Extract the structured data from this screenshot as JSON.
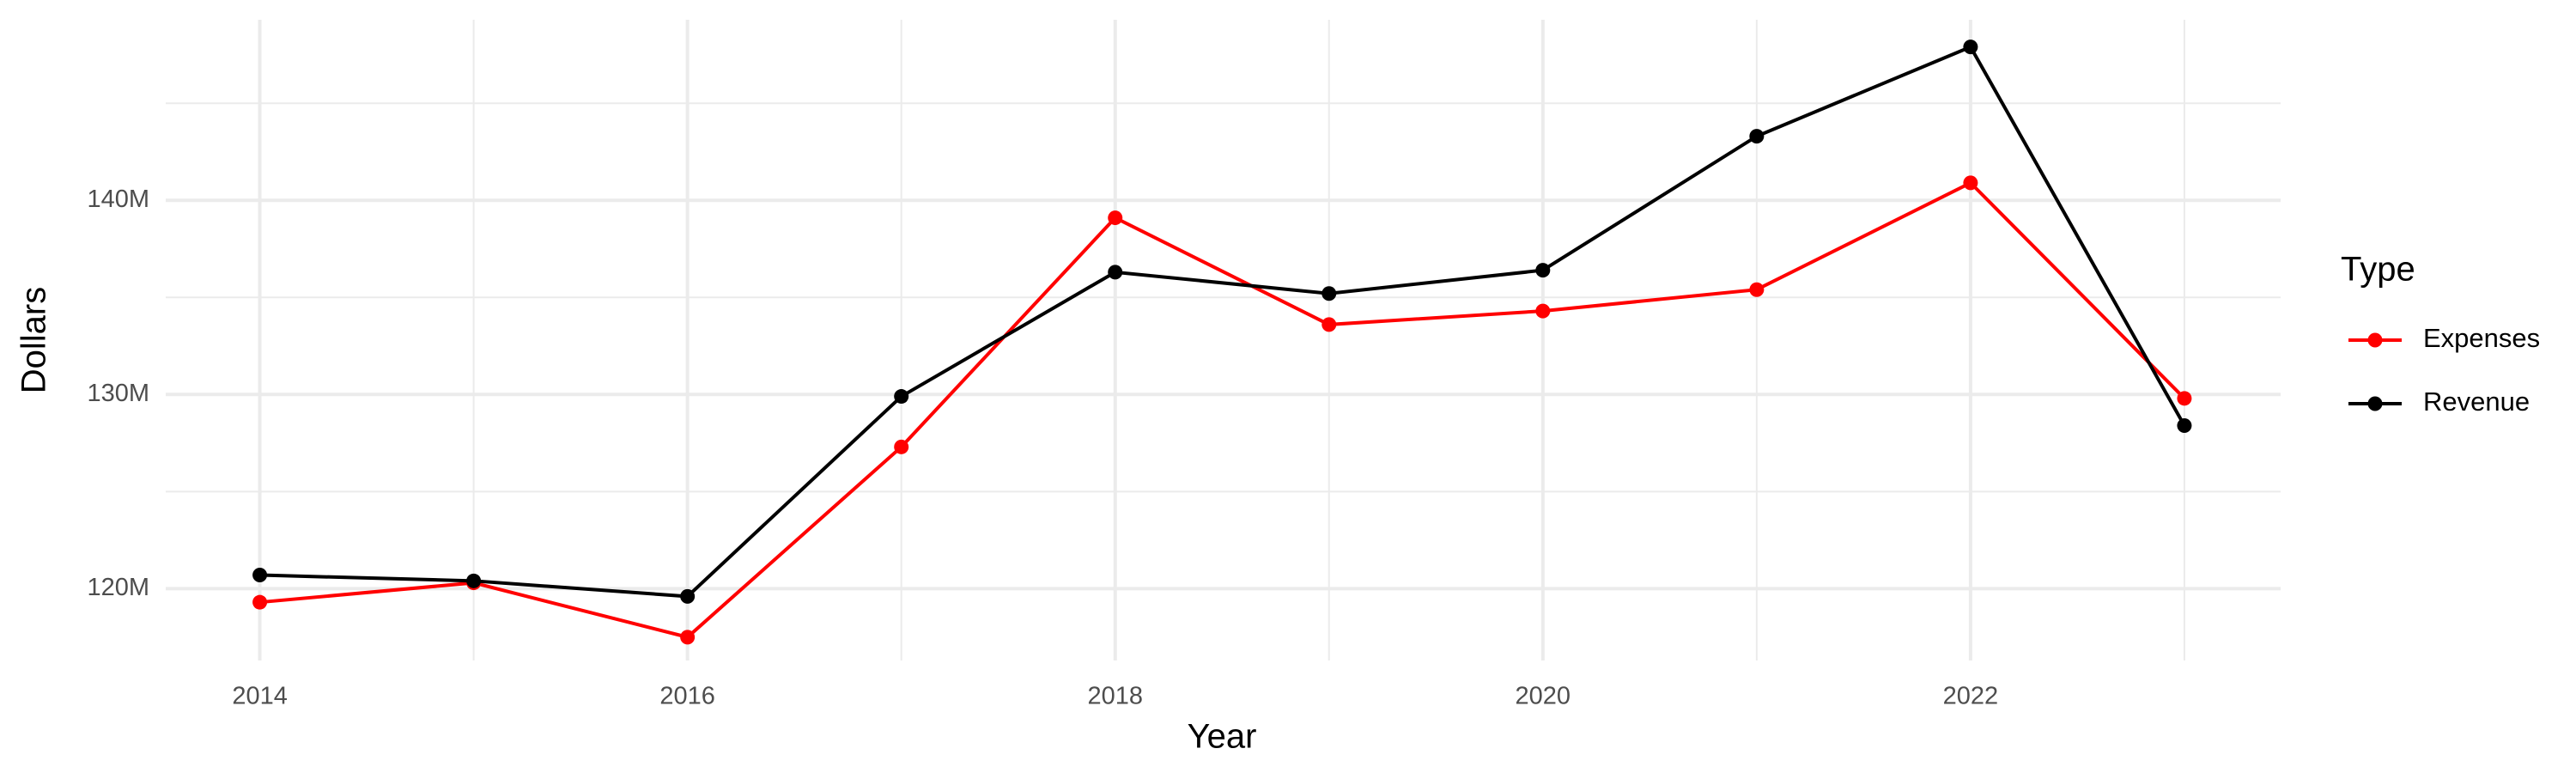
{
  "chart_data": {
    "type": "line",
    "x_label": "Year",
    "y_label": "Dollars",
    "legend_title": "Type",
    "legend_position": "right",
    "grid": true,
    "x": [
      2014,
      2015,
      2016,
      2017,
      2018,
      2019,
      2020,
      2021,
      2022,
      2023
    ],
    "series": [
      {
        "name": "Expenses",
        "color": "#ff0000",
        "values": [
          119300000,
          120300000,
          117500000,
          127300000,
          139100000,
          133600000,
          134300000,
          135400000,
          140900000,
          129800000
        ]
      },
      {
        "name": "Revenue",
        "color": "#000000",
        "values": [
          120700000,
          120400000,
          119600000,
          129900000,
          136300000,
          135200000,
          136400000,
          143300000,
          147900000,
          128400000
        ]
      }
    ],
    "xlim": [
      2013.56,
      2023.45
    ],
    "ylim": [
      116300000,
      149300000
    ],
    "xticks": [
      2014,
      2016,
      2018,
      2020,
      2022
    ],
    "xticks_minor": [
      2015,
      2017,
      2019,
      2021,
      2023
    ],
    "yticks": [
      {
        "value": 120000000,
        "label": "120M"
      },
      {
        "value": 130000000,
        "label": "130M"
      },
      {
        "value": 140000000,
        "label": "140M"
      }
    ],
    "yticks_minor": [
      125000000,
      135000000,
      145000000
    ]
  }
}
